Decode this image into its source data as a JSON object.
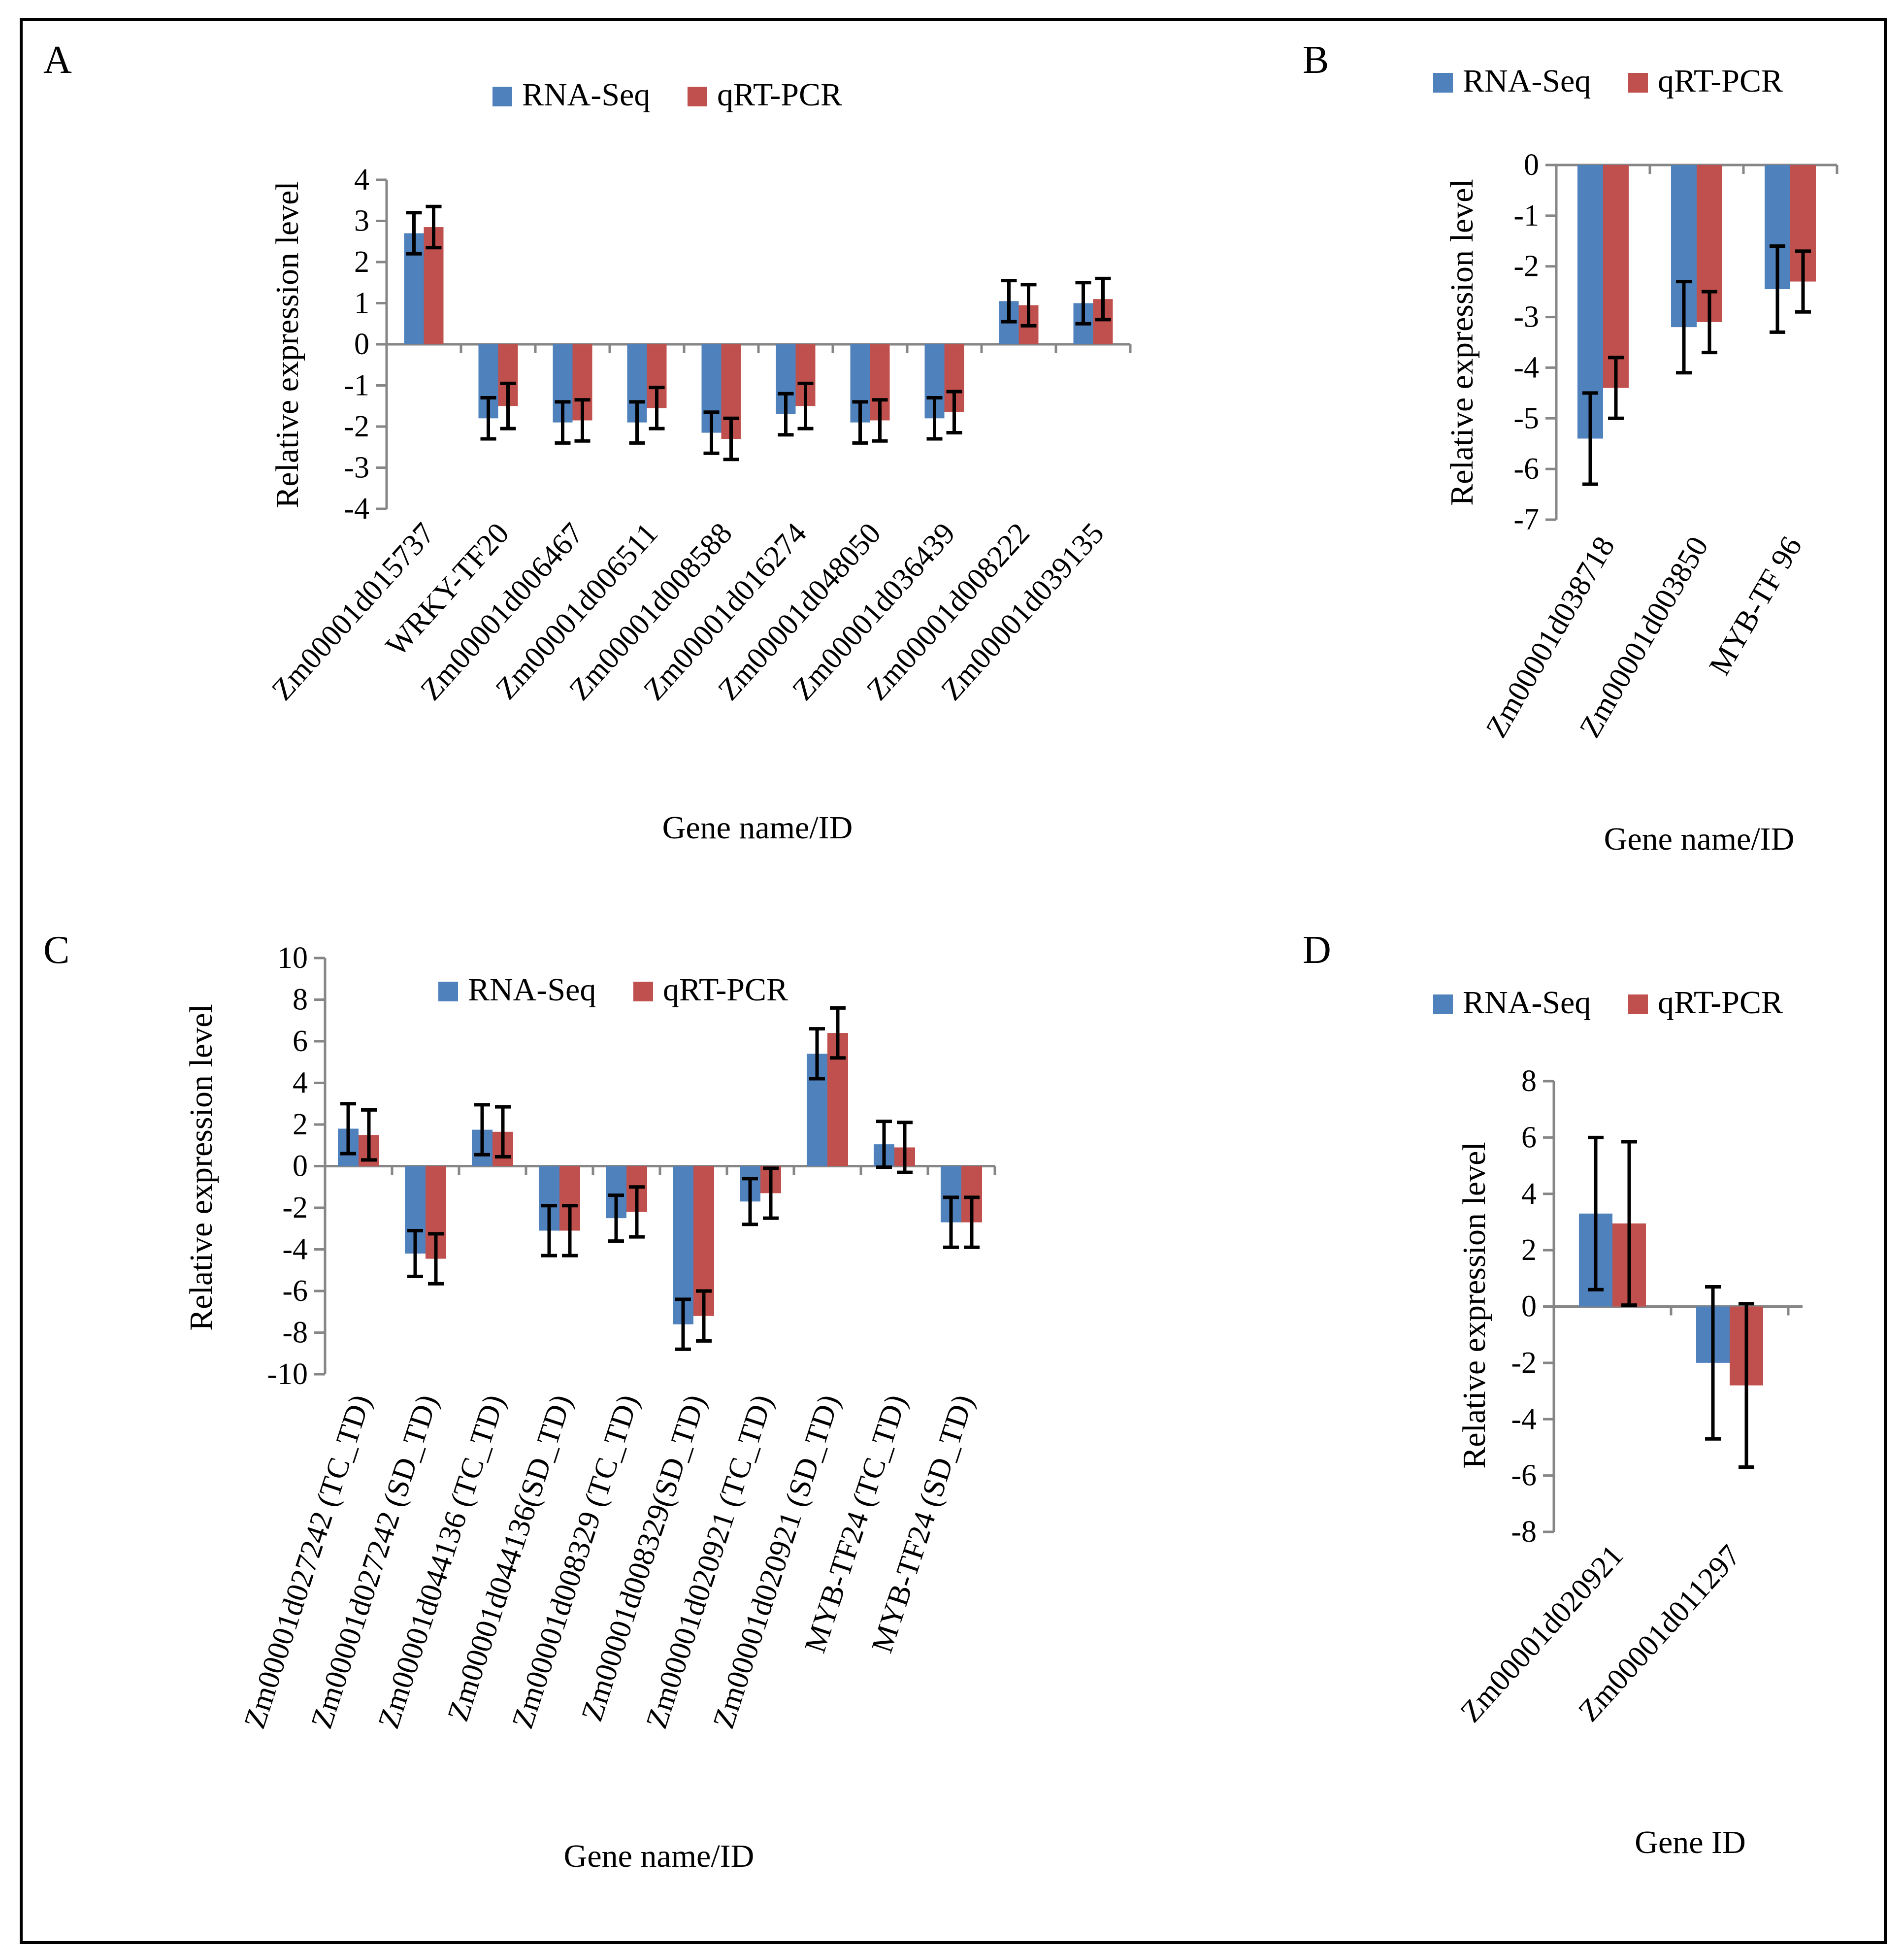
{
  "figure": {
    "border_color": "#000000"
  },
  "colors": {
    "rna_seq": "#4F81BD",
    "qrt_pcr": "#C0504D",
    "axis": "#868686",
    "error_bar": "#000000"
  },
  "chart_data": [
    {
      "panel": "A",
      "type": "bar",
      "title": "",
      "xlabel": "Gene name/ID",
      "ylabel": "Relative expression level",
      "ylim": [
        -4,
        4
      ],
      "yticks": [
        4,
        3,
        2,
        1,
        0,
        -1,
        -2,
        -3,
        -4
      ],
      "legend": [
        "RNA-Seq",
        "qRT-PCR"
      ],
      "categories": [
        "Zm00001d015737",
        "WRKY-TF20",
        "Zm00001d006467",
        "Zm00001d006511",
        "Zm00001d008588",
        "Zm00001d016274",
        "Zm00001d048050",
        "Zm00001d036439",
        "Zm00001d008222",
        "Zm00001d039135"
      ],
      "series": [
        {
          "name": "RNA-Seq",
          "values": [
            2.7,
            -1.8,
            -1.9,
            -1.9,
            -2.15,
            -1.7,
            -1.9,
            -1.8,
            1.05,
            1.0
          ],
          "errors": [
            0.5,
            0.5,
            0.5,
            0.5,
            0.5,
            0.5,
            0.5,
            0.5,
            0.5,
            0.5
          ]
        },
        {
          "name": "qRT-PCR",
          "values": [
            2.85,
            -1.5,
            -1.85,
            -1.55,
            -2.3,
            -1.5,
            -1.85,
            -1.65,
            0.95,
            1.1
          ],
          "errors": [
            0.5,
            0.55,
            0.5,
            0.5,
            0.5,
            0.55,
            0.5,
            0.5,
            0.5,
            0.5
          ]
        }
      ]
    },
    {
      "panel": "B",
      "type": "bar",
      "title": "",
      "xlabel": "Gene name/ID",
      "ylabel": "Relative expression level",
      "ylim": [
        -7,
        0
      ],
      "yticks": [
        0,
        -1,
        -2,
        -3,
        -4,
        -5,
        -6,
        -7
      ],
      "legend": [
        "RNA-Seq",
        "qRT-PCR"
      ],
      "categories": [
        "Zm00001d038718",
        "Zm00001d003850",
        "MYB-TF 96"
      ],
      "series": [
        {
          "name": "RNA-Seq",
          "values": [
            -5.4,
            -3.2,
            -2.45
          ],
          "errors": [
            0.9,
            0.9,
            0.85
          ]
        },
        {
          "name": "qRT-PCR",
          "values": [
            -4.4,
            -3.1,
            -2.3
          ],
          "errors": [
            0.6,
            0.6,
            0.6
          ]
        }
      ]
    },
    {
      "panel": "C",
      "type": "bar",
      "title": "",
      "xlabel": "Gene name/ID",
      "ylabel": "Relative expression level",
      "ylim": [
        -10,
        10
      ],
      "yticks": [
        10,
        8,
        6,
        4,
        2,
        0,
        -2,
        -4,
        -6,
        -8,
        -10
      ],
      "legend": [
        "RNA-Seq",
        "qRT-PCR"
      ],
      "categories": [
        "Zm00001d027242 (TC_TD)",
        "Zm00001d027242 (SD_TD)",
        "Zm00001d044136 (TC_TD)",
        "Zm00001d044136(SD_TD)",
        "Zm00001d008329 (TC_TD)",
        "Zm00001d008329(SD_TD)",
        "Zm00001d020921 (TC_TD)",
        "Zm00001d020921 (SD_TD)",
        "MYB-TF24 (TC_TD)",
        "MYB-TF24 (SD_TD)"
      ],
      "series": [
        {
          "name": "RNA-Seq",
          "values": [
            1.8,
            -4.2,
            1.75,
            -3.1,
            -2.5,
            -7.6,
            -1.7,
            5.4,
            1.05,
            -2.7
          ],
          "errors": [
            1.2,
            1.1,
            1.2,
            1.2,
            1.1,
            1.2,
            1.1,
            1.2,
            1.1,
            1.2
          ]
        },
        {
          "name": "qRT-PCR",
          "values": [
            1.5,
            -4.45,
            1.65,
            -3.1,
            -2.2,
            -7.2,
            -1.3,
            6.4,
            0.9,
            -2.7
          ],
          "errors": [
            1.2,
            1.2,
            1.2,
            1.2,
            1.2,
            1.2,
            1.2,
            1.2,
            1.2,
            1.2
          ]
        }
      ]
    },
    {
      "panel": "D",
      "type": "bar",
      "title": "",
      "xlabel": "Gene ID",
      "ylabel": "Relative expression level",
      "ylim": [
        -8,
        8
      ],
      "yticks": [
        8,
        6,
        4,
        2,
        0,
        -2,
        -4,
        -6,
        -8
      ],
      "legend": [
        "RNA-Seq",
        "qRT-PCR"
      ],
      "categories": [
        "Zm00001d020921",
        "Zm00001d011297"
      ],
      "series": [
        {
          "name": "RNA-Seq",
          "values": [
            3.3,
            -2.0
          ],
          "errors": [
            2.7,
            2.7
          ]
        },
        {
          "name": "qRT-PCR",
          "values": [
            2.95,
            -2.8
          ],
          "errors": [
            2.9,
            2.9
          ]
        }
      ]
    }
  ]
}
